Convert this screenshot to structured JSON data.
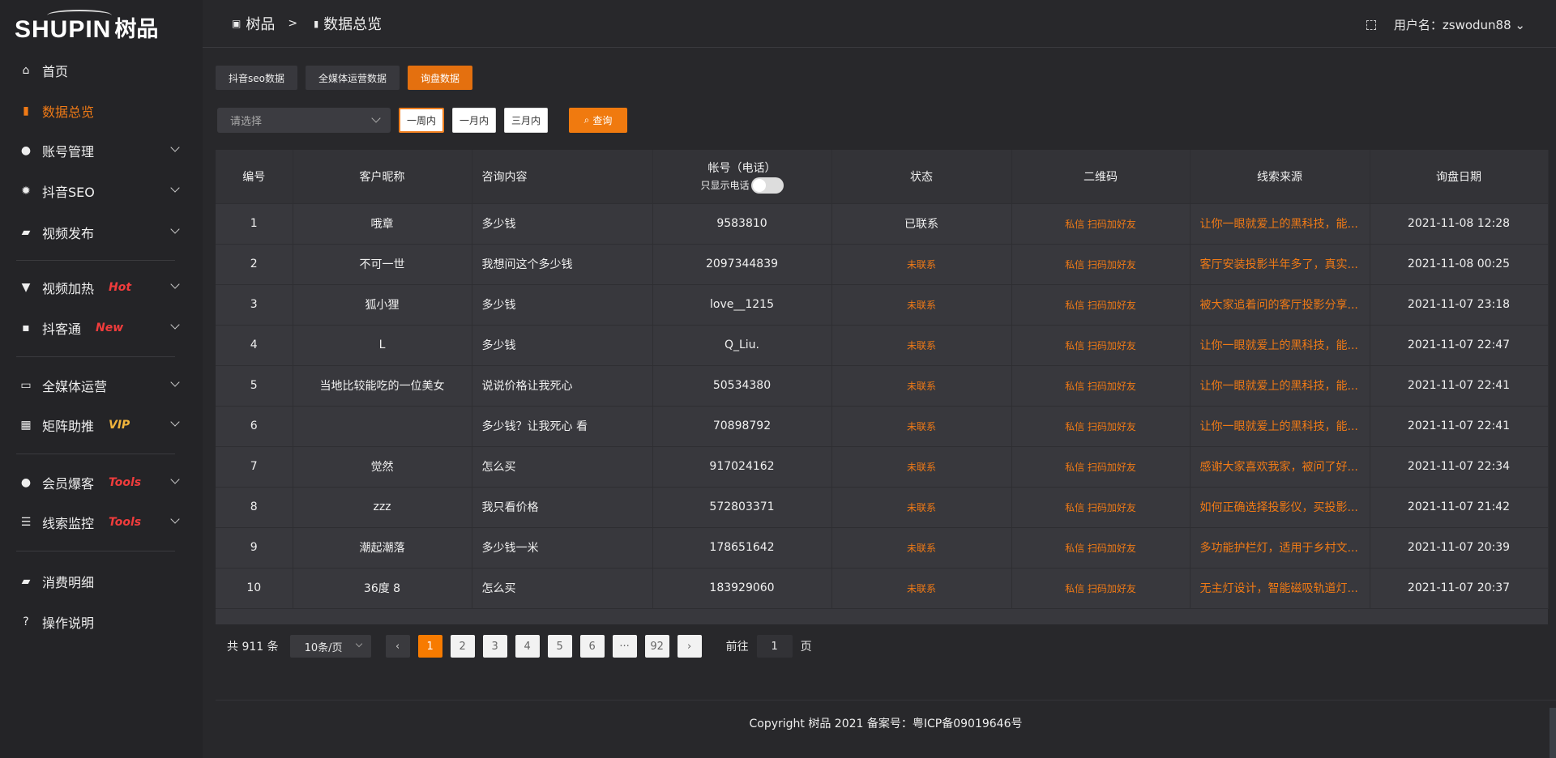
{
  "logo": {
    "en": "SHUPIN",
    "cn": "树品"
  },
  "sidebar": {
    "items": [
      {
        "label": "首页",
        "icon": "home-icon",
        "glyph": "⌂",
        "badge": "",
        "chevron": false,
        "active": false
      },
      {
        "label": "数据总览",
        "icon": "bar-chart-icon",
        "glyph": "▮",
        "badge": "",
        "chevron": false,
        "active": true
      },
      {
        "label": "账号管理",
        "icon": "user-icon",
        "glyph": "●",
        "badge": "",
        "chevron": true,
        "active": false
      },
      {
        "label": "抖音SEO",
        "icon": "gear-icon",
        "glyph": "✹",
        "badge": "",
        "chevron": true,
        "active": false
      },
      {
        "label": "视频发布",
        "icon": "briefcase-icon",
        "glyph": "▰",
        "badge": "",
        "chevron": true,
        "active": false
      },
      {
        "label": "视频加热",
        "icon": "paint-roller-icon",
        "glyph": "▼",
        "badge": "Hot",
        "badge_color": "#f03c3c",
        "chevron": true,
        "active": false
      },
      {
        "label": "抖客通",
        "icon": "chat-icon",
        "glyph": "▪",
        "badge": "New",
        "badge_color": "#f03c3c",
        "chevron": true,
        "active": false
      },
      {
        "label": "全媒体运营",
        "icon": "monitor-icon",
        "glyph": "▭",
        "badge": "",
        "chevron": true,
        "active": false
      },
      {
        "label": "矩阵助推",
        "icon": "grid-icon",
        "glyph": "▦",
        "badge": "VIP",
        "badge_color": "#f0b43c",
        "chevron": true,
        "active": false
      },
      {
        "label": "会员爆客",
        "icon": "user-icon",
        "glyph": "●",
        "badge": "Tools",
        "badge_color": "#f03c3c",
        "chevron": true,
        "active": false
      },
      {
        "label": "线索监控",
        "icon": "sliders-icon",
        "glyph": "☰",
        "badge": "Tools",
        "badge_color": "#f03c3c",
        "chevron": true,
        "active": false
      },
      {
        "label": "消费明细",
        "icon": "wallet-icon",
        "glyph": "▰",
        "badge": "",
        "chevron": false,
        "active": false
      },
      {
        "label": "操作说明",
        "icon": "help-icon",
        "glyph": "?",
        "badge": "",
        "chevron": false,
        "active": false
      }
    ]
  },
  "header": {
    "breadcrumb": [
      "树品",
      "数据总览"
    ],
    "breadcrumb_sep": ">",
    "user": "用户名：zswodun88"
  },
  "tabs": [
    {
      "label": "抖音seo数据",
      "active": false
    },
    {
      "label": "全媒体运营数据",
      "active": false
    },
    {
      "label": "询盘数据",
      "active": true
    }
  ],
  "filters": {
    "select_placeholder": "请选择",
    "ranges": [
      {
        "label": "一周内",
        "active": true
      },
      {
        "label": "一月内",
        "active": false
      },
      {
        "label": "三月内",
        "active": false
      }
    ],
    "query": "查询"
  },
  "table": {
    "columns": [
      "编号",
      "客户昵称",
      "咨询内容",
      "帐号（电话）",
      "状态",
      "二维码",
      "线索来源",
      "询盘日期"
    ],
    "phone_toggle_label": "只显示电话",
    "phone_toggle_on": false,
    "rows": [
      [
        "1",
        "哦章",
        "多少钱",
        "9583810",
        "已联系",
        "私信 扫码加好友",
        "让你一眼就爱上的黑科技，能...",
        "2021-11-08 12:28"
      ],
      [
        "2",
        "不可一世",
        "我想问这个多少钱",
        "2097344839",
        "未联系",
        "私信 扫码加好友",
        "客厅安装投影半年多了，真实...",
        "2021-11-08 00:25"
      ],
      [
        "3",
        "狐小狸",
        "多少钱",
        "love__1215",
        "未联系",
        "私信 扫码加好友",
        "被大家追着问的客厅投影分享...",
        "2021-11-07 23:18"
      ],
      [
        "4",
        "L",
        "多少钱",
        "Q_Liu.",
        "未联系",
        "私信 扫码加好友",
        "让你一眼就爱上的黑科技，能...",
        "2021-11-07 22:47"
      ],
      [
        "5",
        "当地比较能吃的一位美女",
        "说说价格让我死心",
        "50534380",
        "未联系",
        "私信 扫码加好友",
        "让你一眼就爱上的黑科技，能...",
        "2021-11-07 22:41"
      ],
      [
        "6",
        "",
        "多少钱？让我死心 看",
        "70898792",
        "未联系",
        "私信 扫码加好友",
        "让你一眼就爱上的黑科技，能...",
        "2021-11-07 22:41"
      ],
      [
        "7",
        "觉然",
        "怎么买",
        "917024162",
        "未联系",
        "私信 扫码加好友",
        "感谢大家喜欢我家，被问了好...",
        "2021-11-07 22:34"
      ],
      [
        "8",
        "zzz",
        "我只看价格",
        "572803371",
        "未联系",
        "私信 扫码加好友",
        "如何正确选择投影仪，买投影...",
        "2021-11-07 21:42"
      ],
      [
        "9",
        "潮起潮落",
        "多少钱一米",
        "178651642",
        "未联系",
        "私信 扫码加好友",
        "多功能护栏灯，适用于乡村文...",
        "2021-11-07 20:39"
      ],
      [
        "10",
        "36度 8",
        "怎么买",
        "183929060",
        "未联系",
        "私信 扫码加好友",
        "无主灯设计，智能磁吸轨道灯...",
        "2021-11-07 20:37"
      ]
    ]
  },
  "pagination": {
    "total": "共 911 条",
    "page_size": "10条/页",
    "pages": [
      "1",
      "2",
      "3",
      "4",
      "5",
      "6",
      "···",
      "92"
    ],
    "current": "1",
    "goto_label": "前往",
    "goto_value": "1",
    "goto_suffix": "页"
  },
  "footer": {
    "copyright": "Copyright 树品 2021 备案号：粤ICP备09019646号"
  },
  "colors": {
    "accent": "#f07a16",
    "sidebar_bg": "#242427",
    "page_bg": "#28282b",
    "table_bg": "#38383d"
  }
}
